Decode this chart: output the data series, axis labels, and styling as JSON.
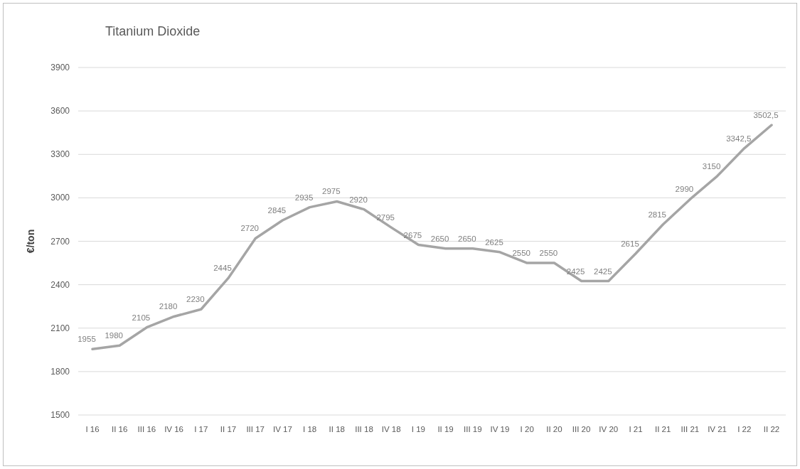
{
  "chart_data": {
    "type": "line",
    "title": "Titanium Dioxide",
    "ylabel": "€/ton",
    "categories": [
      "I 16",
      "II 16",
      "III 16",
      "IV 16",
      "I 17",
      "II 17",
      "III 17",
      "IV 17",
      "I 18",
      "II 18",
      "III 18",
      "IV 18",
      "I 19",
      "II 19",
      "III 19",
      "IV 19",
      "I 20",
      "II 20",
      "III 20",
      "IV 20",
      "I 21",
      "II 21",
      "III 21",
      "IV 21",
      "I 22",
      "II 22"
    ],
    "series": [
      {
        "color": "#a5a5a5",
        "values": [
          1955,
          1980,
          2105,
          2180,
          2230,
          2445,
          2720,
          2845,
          2935,
          2975,
          2920,
          2795,
          2675,
          2650,
          2650,
          2625,
          2550,
          2550,
          2425,
          2425,
          2615,
          2815,
          2990,
          3150,
          3342.5,
          3502.5
        ],
        "value_labels": [
          "1955",
          "1980",
          "2105",
          "2180",
          "2230",
          "2445",
          "2720",
          "2845",
          "2935",
          "2975",
          "2920",
          "2795",
          "2675",
          "2650",
          "2650",
          "2625",
          "2550",
          "2550",
          "2425",
          "2425",
          "2615",
          "2815",
          "2990",
          "3150",
          "3342,5",
          "3502,5"
        ]
      }
    ],
    "ylim": [
      1500,
      3900
    ],
    "yticks": [
      1500,
      1800,
      2100,
      2400,
      2700,
      3000,
      3300,
      3600,
      3900
    ],
    "grid": "y",
    "marker": "none",
    "line_style": "solid"
  }
}
